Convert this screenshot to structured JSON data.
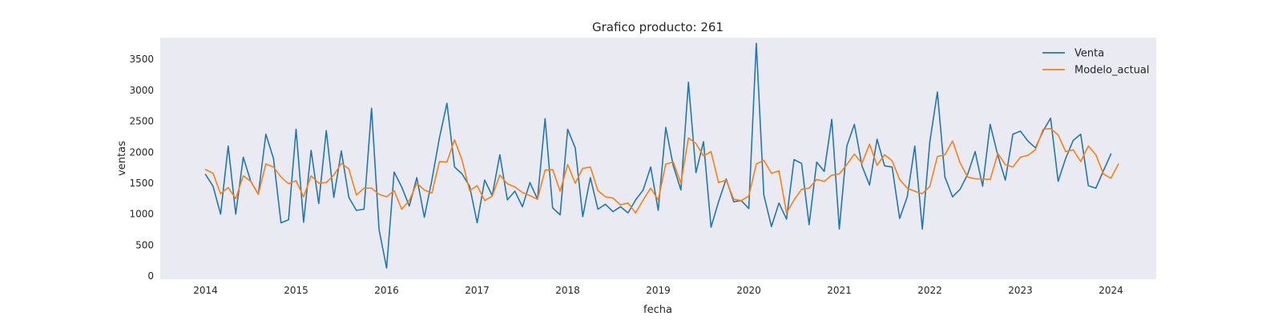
{
  "chart_data": {
    "type": "line",
    "title": "Grafico producto: 261",
    "xlabel": "fecha",
    "ylabel": "ventas",
    "x_start": "2014-01",
    "x_ticks": [
      "2014",
      "2015",
      "2016",
      "2017",
      "2018",
      "2019",
      "2020",
      "2021",
      "2022",
      "2023",
      "2024"
    ],
    "y_ticks": [
      "0",
      "500",
      "1000",
      "1500",
      "2000",
      "2500",
      "3000",
      "3500"
    ],
    "xlim": [
      "2013-07",
      "2024-07"
    ],
    "ylim": [
      -50,
      3850
    ],
    "grid": false,
    "legend_position": "top-right",
    "series": [
      {
        "name": "Venta",
        "color": "#1f77b4",
        "values": [
          1640,
          1450,
          1000,
          2100,
          1000,
          1920,
          1530,
          1320,
          2290,
          1900,
          860,
          910,
          2370,
          870,
          2030,
          1170,
          2350,
          1270,
          2020,
          1270,
          1060,
          1080,
          2710,
          750,
          130,
          1680,
          1440,
          1130,
          1590,
          950,
          1550,
          2230,
          2790,
          1760,
          1650,
          1450,
          860,
          1550,
          1300,
          1960,
          1230,
          1370,
          1120,
          1510,
          1240,
          2540,
          1100,
          990,
          2370,
          2070,
          960,
          1590,
          1080,
          1160,
          1040,
          1120,
          1020,
          1230,
          1390,
          1760,
          1060,
          2400,
          1780,
          1390,
          3130,
          1670,
          2170,
          790,
          1200,
          1570,
          1200,
          1220,
          1090,
          3760,
          1310,
          800,
          1180,
          920,
          1880,
          1820,
          830,
          1840,
          1690,
          2530,
          760,
          2100,
          2450,
          1780,
          1470,
          2210,
          1780,
          1760,
          930,
          1280,
          2100,
          760,
          2170,
          2970,
          1600,
          1280,
          1400,
          1640,
          2010,
          1450,
          2450,
          1950,
          1550,
          2290,
          2340,
          2180,
          2070,
          2340,
          2550,
          1530,
          1900,
          2190,
          2290,
          1460,
          1420,
          1700,
          1970
        ]
      },
      {
        "name": "Modelo_actual",
        "color": "#ff7f0e",
        "values": [
          1720,
          1660,
          1330,
          1430,
          1250,
          1620,
          1530,
          1320,
          1810,
          1760,
          1600,
          1490,
          1540,
          1280,
          1620,
          1500,
          1510,
          1630,
          1820,
          1730,
          1310,
          1420,
          1420,
          1320,
          1280,
          1380,
          1080,
          1220,
          1500,
          1390,
          1340,
          1850,
          1840,
          2200,
          1870,
          1380,
          1460,
          1220,
          1290,
          1630,
          1490,
          1440,
          1350,
          1300,
          1240,
          1710,
          1720,
          1370,
          1800,
          1500,
          1740,
          1760,
          1380,
          1280,
          1260,
          1150,
          1180,
          1020,
          1230,
          1420,
          1230,
          1810,
          1840,
          1500,
          2230,
          2140,
          1940,
          2010,
          1510,
          1550,
          1240,
          1220,
          1290,
          1810,
          1870,
          1660,
          1700,
          1020,
          1230,
          1400,
          1420,
          1560,
          1530,
          1630,
          1650,
          1800,
          1970,
          1820,
          2130,
          1790,
          1960,
          1860,
          1560,
          1420,
          1370,
          1330,
          1450,
          1930,
          1960,
          2180,
          1830,
          1600,
          1570,
          1570,
          1560,
          1980,
          1800,
          1760,
          1920,
          1950,
          2040,
          2370,
          2380,
          2280,
          2010,
          2040,
          1850,
          2100,
          1960,
          1650,
          1580,
          1810
        ]
      }
    ]
  }
}
